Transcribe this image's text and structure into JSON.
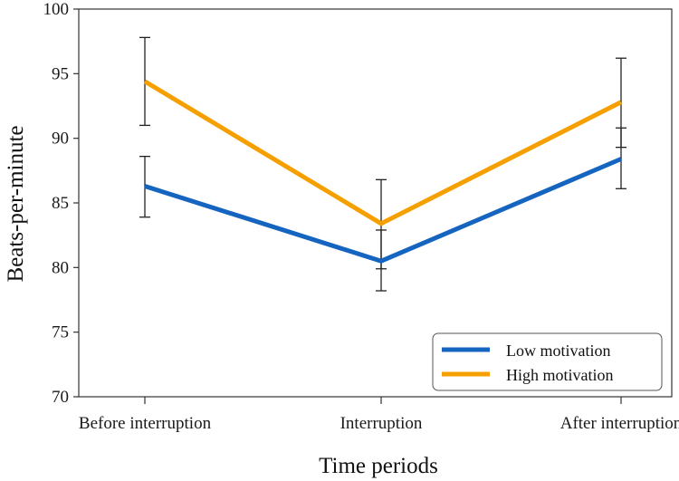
{
  "chart_data": {
    "type": "line",
    "xlabel": "Time periods",
    "ylabel": "Beats-per-minute",
    "ylim": [
      70,
      100
    ],
    "yticks": [
      70,
      75,
      80,
      85,
      90,
      95,
      100
    ],
    "categories": [
      "Before interruption",
      "Interruption",
      "After interruption"
    ],
    "grid": false,
    "legend_position": "bottom-right",
    "series": [
      {
        "name": "Low motivation",
        "color": "#1565c0",
        "values": [
          86.3,
          80.5,
          88.4
        ],
        "error_low": [
          83.9,
          78.2,
          86.1
        ],
        "error_high": [
          88.6,
          82.9,
          90.8
        ]
      },
      {
        "name": "High motivation",
        "color": "#f59f00",
        "values": [
          94.4,
          83.4,
          92.8
        ],
        "error_low": [
          91.0,
          79.9,
          89.3
        ],
        "error_high": [
          97.8,
          86.8,
          96.2
        ]
      }
    ]
  }
}
